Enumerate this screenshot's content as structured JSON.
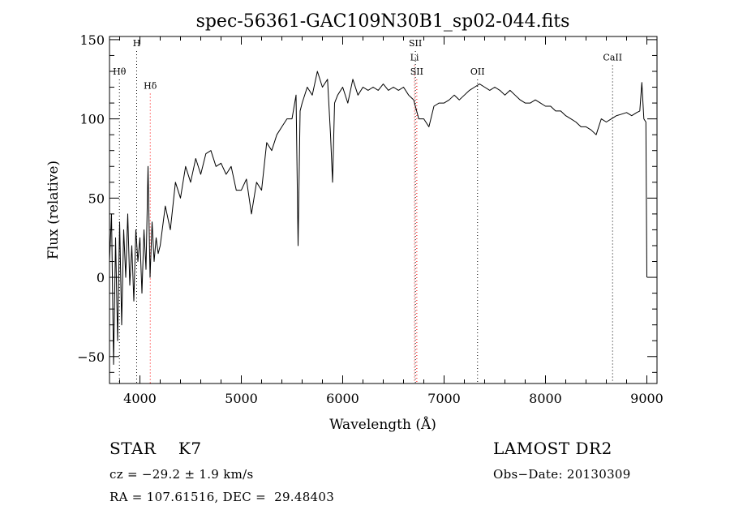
{
  "chart_data": {
    "type": "line",
    "title": "spec-56361-GAC109N30B1_sp02-044.fits",
    "xlabel": "Wavelength (Å)",
    "ylabel": "Flux (relative)",
    "xlim": [
      3700,
      9100
    ],
    "ylim": [
      -67,
      152
    ],
    "x_ticks": [
      4000,
      5000,
      6000,
      7000,
      8000,
      9000
    ],
    "x_tick_labels": [
      "4000",
      "5000",
      "6000",
      "7000",
      "8000",
      "9000"
    ],
    "y_ticks": [
      -50,
      0,
      50,
      100,
      150
    ],
    "y_tick_labels": [
      "−50",
      "0",
      "50",
      "100",
      "150"
    ],
    "grid": false,
    "series_color": "#000000",
    "line_markers": [
      {
        "label": "Hθ",
        "wavelength": 3798,
        "color": "#000000",
        "level": 3
      },
      {
        "label": "H",
        "wavelength": 3968,
        "color": "#000000",
        "level": 1
      },
      {
        "label": "Hδ",
        "wavelength": 4102,
        "color": "#ff0000",
        "level": 4
      },
      {
        "label": "SII",
        "wavelength": 6717,
        "color": "#000000",
        "level": 1
      },
      {
        "label": "Li",
        "wavelength": 6708,
        "color": "#ff0000",
        "level": 2
      },
      {
        "label": "SII",
        "wavelength": 6731,
        "color": "#ff0000",
        "level": 3
      },
      {
        "label": "OII",
        "wavelength": 7330,
        "color": "#000000",
        "level": 3
      },
      {
        "label": "CaII",
        "wavelength": 8662,
        "color": "#000000",
        "level": 2
      }
    ],
    "series": [
      {
        "x": [
          3700,
          3720,
          3740,
          3760,
          3780,
          3800,
          3820,
          3840,
          3860,
          3880,
          3900,
          3920,
          3940,
          3960,
          3980,
          4000,
          4020,
          4040,
          4060,
          4080,
          4100,
          4120,
          4140,
          4160,
          4180,
          4200,
          4250,
          4300,
          4350,
          4400,
          4450,
          4500,
          4550,
          4600,
          4650,
          4700,
          4750,
          4800,
          4850,
          4900,
          4950,
          5000,
          5050,
          5100,
          5150,
          5200,
          5250,
          5300,
          5350,
          5400,
          5450,
          5500,
          5540,
          5560,
          5580,
          5600,
          5650,
          5700,
          5750,
          5800,
          5850,
          5880,
          5900,
          5920,
          5950,
          6000,
          6050,
          6100,
          6150,
          6200,
          6250,
          6300,
          6350,
          6400,
          6450,
          6500,
          6550,
          6600,
          6650,
          6700,
          6750,
          6800,
          6850,
          6900,
          6950,
          7000,
          7050,
          7100,
          7150,
          7200,
          7250,
          7300,
          7350,
          7400,
          7450,
          7500,
          7550,
          7600,
          7650,
          7700,
          7750,
          7800,
          7850,
          7900,
          7950,
          8000,
          8050,
          8100,
          8150,
          8200,
          8250,
          8300,
          8350,
          8400,
          8450,
          8500,
          8550,
          8600,
          8650,
          8700,
          8750,
          8800,
          8850,
          8900,
          8930,
          8950,
          8970,
          8990,
          9000
        ],
        "y": [
          10,
          40,
          -55,
          25,
          -40,
          35,
          -30,
          30,
          0,
          40,
          -5,
          20,
          -15,
          30,
          10,
          25,
          -10,
          30,
          5,
          70,
          0,
          35,
          10,
          25,
          15,
          20,
          45,
          30,
          60,
          50,
          70,
          60,
          75,
          65,
          78,
          80,
          70,
          72,
          65,
          70,
          55,
          55,
          62,
          40,
          60,
          55,
          85,
          80,
          90,
          95,
          100,
          100,
          115,
          20,
          105,
          110,
          120,
          115,
          130,
          120,
          125,
          90,
          60,
          110,
          115,
          120,
          110,
          125,
          115,
          120,
          118,
          120,
          118,
          122,
          118,
          120,
          118,
          120,
          115,
          112,
          100,
          100,
          95,
          108,
          110,
          110,
          112,
          115,
          112,
          115,
          118,
          120,
          122,
          120,
          118,
          120,
          118,
          115,
          118,
          115,
          112,
          110,
          110,
          112,
          110,
          108,
          108,
          105,
          105,
          102,
          100,
          98,
          95,
          95,
          93,
          90,
          100,
          98,
          100,
          102,
          103,
          104,
          102,
          104,
          105,
          123,
          100,
          98,
          0
        ]
      }
    ]
  },
  "info": {
    "object_class": "STAR    K7",
    "velocity": "cz = −29.2 ± 1.9 km/s",
    "coordinates": "RA = 107.61516, DEC =  29.48403",
    "survey": "LAMOST DR2",
    "obs_date": "Obs−Date: 20130309"
  }
}
